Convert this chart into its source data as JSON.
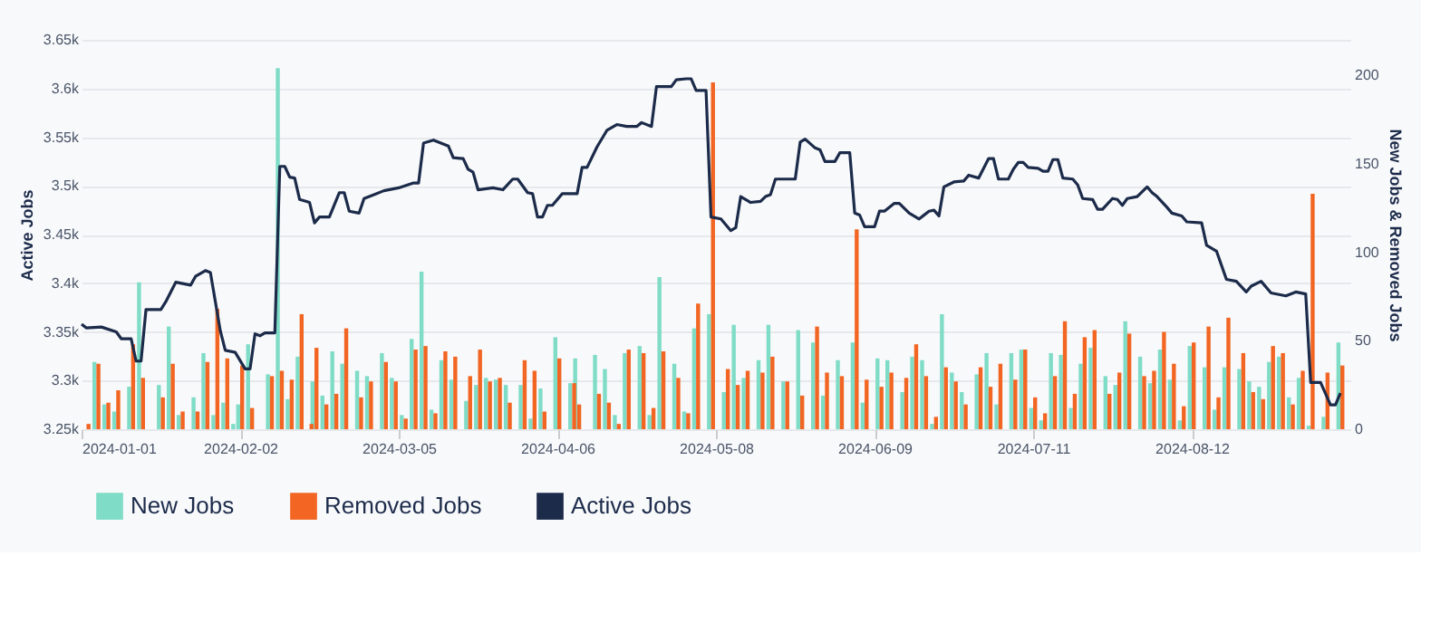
{
  "chart_data": {
    "type": "bar",
    "ylabel": "Active Jobs",
    "y2label": "New Jobs & Removed Jobs",
    "xlim": [
      "2024-01-01",
      "2024-09-13"
    ],
    "xticks": [
      "2024-01-01",
      "2024-02-02",
      "2024-03-05",
      "2024-04-06",
      "2024-05-08",
      "2024-06-09",
      "2024-07-11",
      "2024-08-12"
    ],
    "ylim": [
      3250,
      3650
    ],
    "yticks": [
      {
        "value": 3250,
        "label": "3.25k"
      },
      {
        "value": 3300,
        "label": "3.3k"
      },
      {
        "value": 3350,
        "label": "3.35k"
      },
      {
        "value": 3400,
        "label": "3.4k"
      },
      {
        "value": 3450,
        "label": "3.45k"
      },
      {
        "value": 3500,
        "label": "3.5k"
      },
      {
        "value": 3550,
        "label": "3.55k"
      },
      {
        "value": 3600,
        "label": "3.6k"
      },
      {
        "value": 3650,
        "label": "3.65k"
      }
    ],
    "y2lim": [
      0,
      220
    ],
    "y2ticks": [
      0,
      50,
      100,
      150,
      200
    ],
    "grid": "y",
    "legend": "bottom",
    "series": [
      {
        "name": "New Jobs",
        "axis": "y2",
        "color": "#7fdcc6",
        "x": [
          "2024-01-04",
          "2024-01-06",
          "2024-01-08",
          "2024-01-11",
          "2024-01-13",
          "2024-01-17",
          "2024-01-19",
          "2024-01-21",
          "2024-01-24",
          "2024-01-26",
          "2024-01-28",
          "2024-01-30",
          "2024-02-01",
          "2024-02-02",
          "2024-02-04",
          "2024-02-08",
          "2024-02-10",
          "2024-02-12",
          "2024-02-14",
          "2024-02-16",
          "2024-02-17",
          "2024-02-19",
          "2024-02-21",
          "2024-02-23",
          "2024-02-26",
          "2024-02-28",
          "2024-03-02",
          "2024-03-04",
          "2024-03-06",
          "2024-03-08",
          "2024-03-10",
          "2024-03-12",
          "2024-03-14",
          "2024-03-16",
          "2024-03-19",
          "2024-03-21",
          "2024-03-23",
          "2024-03-25",
          "2024-03-27",
          "2024-03-30",
          "2024-04-01",
          "2024-04-03",
          "2024-04-06",
          "2024-04-09",
          "2024-04-10",
          "2024-04-14",
          "2024-04-16",
          "2024-04-18",
          "2024-04-20",
          "2024-04-23",
          "2024-04-25",
          "2024-04-27",
          "2024-04-30",
          "2024-05-02",
          "2024-05-04",
          "2024-05-07",
          "2024-05-10",
          "2024-05-12",
          "2024-05-14",
          "2024-05-17",
          "2024-05-19",
          "2024-05-22",
          "2024-05-25",
          "2024-05-28",
          "2024-05-30",
          "2024-06-02",
          "2024-06-05",
          "2024-06-07",
          "2024-06-10",
          "2024-06-12",
          "2024-06-15",
          "2024-06-17",
          "2024-06-19",
          "2024-06-21",
          "2024-06-23",
          "2024-06-25",
          "2024-06-27",
          "2024-06-30",
          "2024-07-02",
          "2024-07-04",
          "2024-07-07",
          "2024-07-09",
          "2024-07-11",
          "2024-07-13",
          "2024-07-15",
          "2024-07-17",
          "2024-07-19",
          "2024-07-21",
          "2024-07-23",
          "2024-07-26",
          "2024-07-28",
          "2024-07-30",
          "2024-08-02",
          "2024-08-04",
          "2024-08-06",
          "2024-08-08",
          "2024-08-10",
          "2024-08-12",
          "2024-08-15",
          "2024-08-17",
          "2024-08-19",
          "2024-08-22",
          "2024-08-24",
          "2024-08-26",
          "2024-08-28",
          "2024-08-30",
          "2024-09-01",
          "2024-09-03",
          "2024-09-05",
          "2024-09-08",
          "2024-09-11"
        ],
        "values": [
          38,
          14,
          10,
          24,
          83,
          25,
          58,
          8,
          18,
          43,
          8,
          15,
          3,
          14,
          48,
          31,
          204,
          17,
          41,
          null,
          27,
          19,
          44,
          37,
          33,
          30,
          43,
          29,
          8,
          51,
          89,
          11,
          39,
          28,
          16,
          25,
          29,
          28,
          25,
          25,
          6,
          23,
          52,
          26,
          40,
          42,
          34,
          8,
          43,
          47,
          8,
          86,
          37,
          10,
          57,
          65,
          21,
          59,
          29,
          39,
          59,
          27,
          56,
          49,
          19,
          39,
          49,
          15,
          40,
          39,
          21,
          41,
          39,
          3,
          65,
          32,
          21,
          31,
          43,
          14,
          43,
          45,
          12,
          5,
          43,
          42,
          12,
          37,
          46,
          30,
          25,
          61,
          41,
          26,
          45,
          28,
          5,
          47,
          35,
          11,
          35,
          34,
          27,
          24,
          38,
          41,
          18,
          29,
          2,
          7,
          49
        ]
      },
      {
        "name": "Removed Jobs",
        "axis": "y2",
        "color": "#f26522",
        "x": [
          "2024-01-02",
          "2024-01-04",
          "2024-01-06",
          "2024-01-08",
          "2024-01-11",
          "2024-01-13",
          "2024-01-17",
          "2024-01-19",
          "2024-01-21",
          "2024-01-24",
          "2024-01-26",
          "2024-01-28",
          "2024-01-30",
          "2024-02-01",
          "2024-02-02",
          "2024-02-04",
          "2024-02-08",
          "2024-02-10",
          "2024-02-12",
          "2024-02-14",
          "2024-02-16",
          "2024-02-17",
          "2024-02-19",
          "2024-02-21",
          "2024-02-23",
          "2024-02-26",
          "2024-02-28",
          "2024-03-02",
          "2024-03-04",
          "2024-03-06",
          "2024-03-08",
          "2024-03-10",
          "2024-03-12",
          "2024-03-14",
          "2024-03-16",
          "2024-03-19",
          "2024-03-21",
          "2024-03-23",
          "2024-03-25",
          "2024-03-27",
          "2024-03-30",
          "2024-04-01",
          "2024-04-03",
          "2024-04-06",
          "2024-04-09",
          "2024-04-10",
          "2024-04-14",
          "2024-04-16",
          "2024-04-18",
          "2024-04-20",
          "2024-04-23",
          "2024-04-25",
          "2024-04-27",
          "2024-04-30",
          "2024-05-02",
          "2024-05-04",
          "2024-05-07",
          "2024-05-10",
          "2024-05-12",
          "2024-05-14",
          "2024-05-17",
          "2024-05-19",
          "2024-05-22",
          "2024-05-25",
          "2024-05-28",
          "2024-05-30",
          "2024-06-02",
          "2024-06-05",
          "2024-06-07",
          "2024-06-10",
          "2024-06-12",
          "2024-06-15",
          "2024-06-17",
          "2024-06-19",
          "2024-06-21",
          "2024-06-23",
          "2024-06-25",
          "2024-06-27",
          "2024-06-30",
          "2024-07-02",
          "2024-07-04",
          "2024-07-07",
          "2024-07-09",
          "2024-07-11",
          "2024-07-13",
          "2024-07-15",
          "2024-07-17",
          "2024-07-19",
          "2024-07-21",
          "2024-07-23",
          "2024-07-26",
          "2024-07-28",
          "2024-07-30",
          "2024-08-02",
          "2024-08-04",
          "2024-08-06",
          "2024-08-08",
          "2024-08-10",
          "2024-08-12",
          "2024-08-15",
          "2024-08-17",
          "2024-08-19",
          "2024-08-22",
          "2024-08-24",
          "2024-08-26",
          "2024-08-28",
          "2024-08-30",
          "2024-09-01",
          "2024-09-03",
          "2024-09-05",
          "2024-09-08",
          "2024-09-11"
        ],
        "values": [
          3,
          37,
          15,
          22,
          48,
          29,
          18,
          37,
          10,
          10,
          38,
          68,
          40,
          null,
          36,
          12,
          30,
          33,
          28,
          65,
          3,
          46,
          14,
          20,
          57,
          18,
          27,
          38,
          27,
          6,
          45,
          47,
          9,
          44,
          41,
          30,
          45,
          27,
          29,
          15,
          39,
          33,
          10,
          40,
          26,
          14,
          20,
          15,
          3,
          45,
          43,
          12,
          44,
          29,
          9,
          71,
          196,
          34,
          25,
          33,
          32,
          41,
          27,
          19,
          58,
          32,
          30,
          113,
          28,
          24,
          32,
          29,
          48,
          30,
          7,
          35,
          27,
          14,
          35,
          24,
          37,
          28,
          45,
          18,
          9,
          30,
          61,
          20,
          52,
          56,
          20,
          32,
          54,
          30,
          33,
          55,
          37,
          13,
          49,
          58,
          18,
          63,
          43,
          21,
          17,
          47,
          43,
          14,
          33,
          133,
          32,
          36
        ]
      },
      {
        "name": "Active Jobs",
        "type": "line",
        "axis": "y",
        "color": "#1c2b4a",
        "x": [
          "2024-01-01",
          "2024-01-02",
          "2024-01-05",
          "2024-01-08",
          "2024-01-09",
          "2024-01-11",
          "2024-01-12",
          "2024-01-13",
          "2024-01-14",
          "2024-01-17",
          "2024-01-18",
          "2024-01-20",
          "2024-01-23",
          "2024-01-24",
          "2024-01-26",
          "2024-01-27",
          "2024-01-29",
          "2024-01-30",
          "2024-02-01",
          "2024-02-03",
          "2024-02-04",
          "2024-02-05",
          "2024-02-06",
          "2024-02-07",
          "2024-02-09",
          "2024-02-10",
          "2024-02-11",
          "2024-02-12",
          "2024-02-13",
          "2024-02-14",
          "2024-02-16",
          "2024-02-17",
          "2024-02-18",
          "2024-02-20",
          "2024-02-22",
          "2024-02-23",
          "2024-02-24",
          "2024-02-26",
          "2024-02-27",
          "2024-02-29",
          "2024-03-02",
          "2024-03-05",
          "2024-03-08",
          "2024-03-09",
          "2024-03-10",
          "2024-03-12",
          "2024-03-15",
          "2024-03-16",
          "2024-03-18",
          "2024-03-19",
          "2024-03-20",
          "2024-03-21",
          "2024-03-24",
          "2024-03-26",
          "2024-03-28",
          "2024-03-29",
          "2024-03-31",
          "2024-04-01",
          "2024-04-02",
          "2024-04-03",
          "2024-04-04",
          "2024-04-05",
          "2024-04-07",
          "2024-04-10",
          "2024-04-11",
          "2024-04-12",
          "2024-04-14",
          "2024-04-16",
          "2024-04-18",
          "2024-04-20",
          "2024-04-22",
          "2024-04-23",
          "2024-04-25",
          "2024-04-26",
          "2024-04-29",
          "2024-04-30",
          "2024-05-02",
          "2024-05-03",
          "2024-05-04",
          "2024-05-06",
          "2024-05-07",
          "2024-05-09",
          "2024-05-11",
          "2024-05-12",
          "2024-05-13",
          "2024-05-15",
          "2024-05-17",
          "2024-05-18",
          "2024-05-19",
          "2024-05-20",
          "2024-05-24",
          "2024-05-25",
          "2024-05-26",
          "2024-05-28",
          "2024-05-29",
          "2024-05-30",
          "2024-06-01",
          "2024-06-02",
          "2024-06-04",
          "2024-06-05",
          "2024-06-06",
          "2024-06-07",
          "2024-06-09",
          "2024-06-10",
          "2024-06-11",
          "2024-06-13",
          "2024-06-14",
          "2024-06-16",
          "2024-06-18",
          "2024-06-20",
          "2024-06-21",
          "2024-06-22",
          "2024-06-23",
          "2024-06-25",
          "2024-06-27",
          "2024-06-28",
          "2024-06-30",
          "2024-07-02",
          "2024-07-03",
          "2024-07-04",
          "2024-07-06",
          "2024-07-07",
          "2024-07-08",
          "2024-07-09",
          "2024-07-10",
          "2024-07-12",
          "2024-07-13",
          "2024-07-14",
          "2024-07-15",
          "2024-07-16",
          "2024-07-17",
          "2024-07-19",
          "2024-07-20",
          "2024-07-21",
          "2024-07-23",
          "2024-07-24",
          "2024-07-25",
          "2024-07-27",
          "2024-07-28",
          "2024-07-29",
          "2024-07-30",
          "2024-08-01",
          "2024-08-03",
          "2024-08-04",
          "2024-08-05",
          "2024-08-07",
          "2024-08-08",
          "2024-08-10",
          "2024-08-11",
          "2024-08-14",
          "2024-08-15",
          "2024-08-17",
          "2024-08-19",
          "2024-08-21",
          "2024-08-23",
          "2024-08-24",
          "2024-08-26",
          "2024-08-28",
          "2024-08-31",
          "2024-09-02",
          "2024-09-04",
          "2024-09-05",
          "2024-09-07",
          "2024-09-09",
          "2024-09-10",
          "2024-09-11"
        ],
        "values": [
          3358,
          3354,
          3355,
          3350,
          3343,
          3343,
          3320,
          3320,
          3373,
          3373,
          3381,
          3401,
          3398,
          3407,
          3413,
          3411,
          3351,
          3331,
          3329,
          3312,
          3312,
          3348,
          3346,
          3349,
          3349,
          3520,
          3520,
          3509,
          3508,
          3486,
          3483,
          3462,
          3468,
          3468,
          3493,
          3493,
          3474,
          3472,
          3487,
          3491,
          3495,
          3498,
          3503,
          3503,
          3544,
          3547,
          3541,
          3529,
          3528,
          3517,
          3514,
          3496,
          3498,
          3496,
          3507,
          3507,
          3493,
          3492,
          3468,
          3468,
          3480,
          3480,
          3492,
          3492,
          3519,
          3519,
          3540,
          3557,
          3563,
          3561,
          3561,
          3565,
          3561,
          3602,
          3602,
          3609,
          3610,
          3610,
          3598,
          3598,
          3468,
          3466,
          3454,
          3457,
          3489,
          3483,
          3484,
          3489,
          3491,
          3507,
          3507,
          3545,
          3548,
          3539,
          3537,
          3525,
          3525,
          3534,
          3534,
          3472,
          3470,
          3458,
          3458,
          3474,
          3474,
          3482,
          3482,
          3472,
          3466,
          3474,
          3475,
          3469,
          3499,
          3504,
          3505,
          3511,
          3508,
          3528,
          3528,
          3507,
          3507,
          3517,
          3524,
          3524,
          3519,
          3518,
          3515,
          3515,
          3527,
          3527,
          3508,
          3507,
          3501,
          3487,
          3486,
          3476,
          3476,
          3487,
          3486,
          3480,
          3487,
          3489,
          3499,
          3493,
          3489,
          3478,
          3472,
          3469,
          3463,
          3462,
          3439,
          3433,
          3404,
          3402,
          3391,
          3397,
          3402,
          3390,
          3387,
          3391,
          3389,
          3298,
          3298,
          3275,
          3275,
          3287
        ]
      }
    ]
  }
}
